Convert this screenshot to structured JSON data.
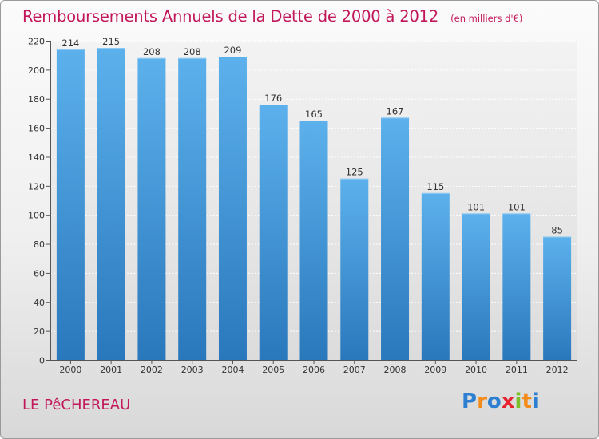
{
  "header": {
    "title": "Remboursements Annuels de la Dette de 2000 à 2012",
    "subtitle": "(en milliers d'€)"
  },
  "footer": {
    "town": "LE PêCHEREAU",
    "logo_letters": [
      {
        "char": "P",
        "color": "#2d7fd1"
      },
      {
        "char": "r",
        "color": "#f28c1a"
      },
      {
        "char": "o",
        "color": "#2d7fd1"
      },
      {
        "char": "x",
        "color": "#e6232e"
      },
      {
        "char": "i",
        "color": "#7bbf2a"
      },
      {
        "char": "t",
        "color": "#f28c1a"
      },
      {
        "char": "i",
        "color": "#2d7fd1"
      }
    ]
  },
  "chart_data": {
    "type": "bar",
    "title": "Remboursements Annuels de la Dette de 2000 à 2012",
    "subtitle": "(en milliers d'€)",
    "categories": [
      "2000",
      "2001",
      "2002",
      "2003",
      "2004",
      "2005",
      "2006",
      "2007",
      "2008",
      "2009",
      "2010",
      "2011",
      "2012"
    ],
    "values": [
      214,
      215,
      208,
      208,
      209,
      176,
      165,
      125,
      167,
      115,
      101,
      101,
      85
    ],
    "ylim": [
      0,
      220
    ],
    "yticks": [
      0,
      20,
      40,
      60,
      80,
      100,
      120,
      140,
      160,
      180,
      200,
      220
    ],
    "grid": true,
    "colors": {
      "bar_top": "#5aaeea",
      "bar_bottom": "#2a79bd",
      "text": "#c2185b"
    }
  }
}
